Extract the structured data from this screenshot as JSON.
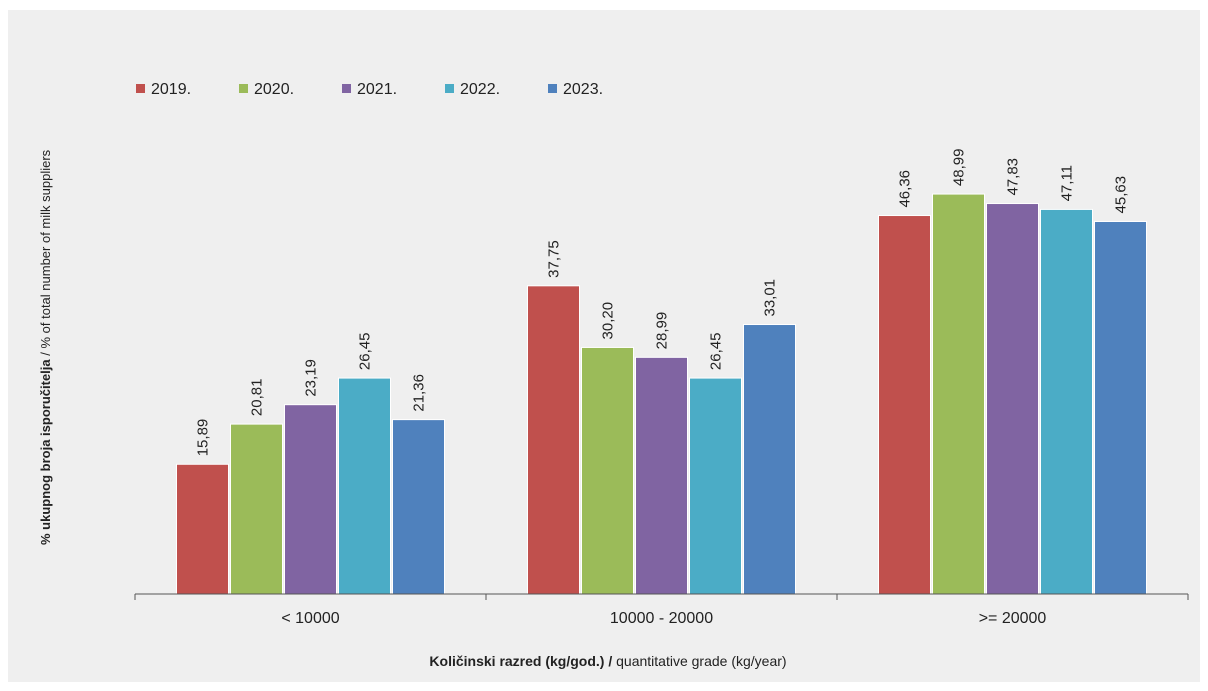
{
  "chart_data": {
    "type": "bar",
    "categories": [
      "< 10000",
      "10000 - 20000",
      ">= 20000"
    ],
    "series": [
      {
        "name": "2019.",
        "color": "#c0504d",
        "values": [
          15.89,
          37.75,
          46.36
        ]
      },
      {
        "name": "2020.",
        "color": "#9bbb59",
        "values": [
          20.81,
          30.2,
          48.99
        ]
      },
      {
        "name": "2021.",
        "color": "#8064a2",
        "values": [
          23.19,
          28.99,
          47.83
        ]
      },
      {
        "name": "2022.",
        "color": "#4bacc6",
        "values": [
          26.45,
          26.45,
          47.11
        ]
      },
      {
        "name": "2023.",
        "color": "#4f81bd",
        "values": [
          21.36,
          33.01,
          45.63
        ]
      }
    ],
    "value_labels": [
      [
        "15,89",
        "37,75",
        "46,36"
      ],
      [
        "20,81",
        "30,20",
        "48,99"
      ],
      [
        "23,19",
        "28,99",
        "47,83"
      ],
      [
        "26,45",
        "26,45",
        "47,11"
      ],
      [
        "21,36",
        "33,01",
        "45,63"
      ]
    ],
    "xlabel_bold": "Količinski razred (kg/god.) /",
    "xlabel_normal": " quantitative grade (kg/year)",
    "ylabel_bold": "% ukupnog broja isporučitelja",
    "ylabel_normal": " / % of total number of milk suppliers",
    "ylim": [
      0,
      55
    ],
    "grid": false,
    "legend_position": "top-left"
  }
}
